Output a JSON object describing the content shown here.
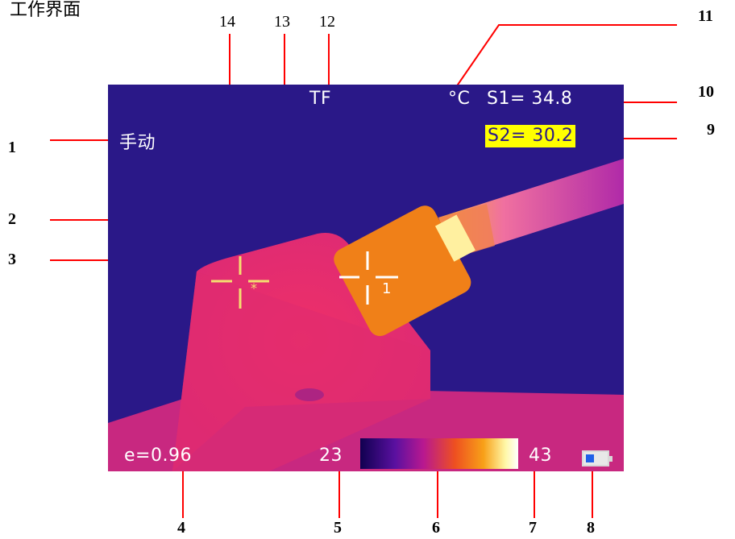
{
  "title": "工作界面",
  "callouts": {
    "c1": "1",
    "c2": "2",
    "c3": "3",
    "c4": "4",
    "c5": "5",
    "c6": "6",
    "c7": "7",
    "c8": "8",
    "c9": "9",
    "c10": "10",
    "c11": "11",
    "c12": "12",
    "c13": "13",
    "c14": "14"
  },
  "screen": {
    "mode": "手动",
    "filter": "TF",
    "unit": "°C",
    "spot1": "S1= 34.8",
    "spot2": "S2= 30.2",
    "emissivity": "e=0.96",
    "scale_min": "23",
    "scale_max": "43",
    "marker_star": "*",
    "marker_one": "1"
  },
  "colors": {
    "background": "#2a1888",
    "leader": "#ff0000",
    "highlight": "#ffff00",
    "warm_body": "#e8306a",
    "hot_object": "#f08018"
  },
  "icons": [
    "battery-icon",
    "crosshair-icon"
  ]
}
